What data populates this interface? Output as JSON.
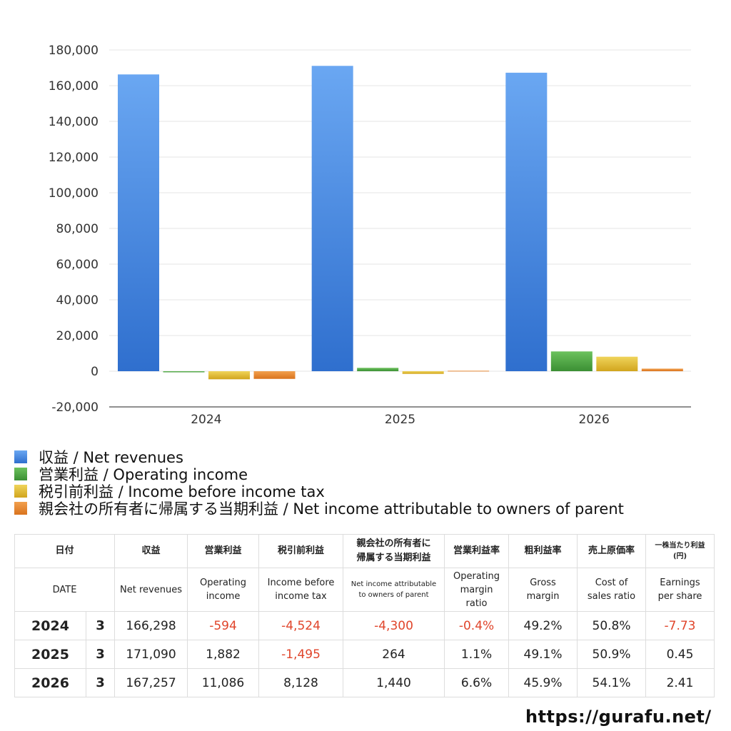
{
  "chart_data": {
    "type": "bar",
    "categories": [
      "2024",
      "2025",
      "2026"
    ],
    "series": [
      {
        "name": "収益 / Net revenues",
        "color": "#4b8fe6",
        "values": [
          166298,
          171090,
          167257
        ]
      },
      {
        "name": "営業利益 / Operating income",
        "color": "#4ea843",
        "values": [
          -594,
          1882,
          11086
        ]
      },
      {
        "name": "税引前利益 / Income before income tax",
        "color": "#e3bd2c",
        "values": [
          -4524,
          -1495,
          8128
        ]
      },
      {
        "name": "親会社の所有者に帰属する当期利益 / Net income attributable to owners of parent",
        "color": "#e58a2e",
        "values": [
          -4300,
          264,
          1440
        ]
      }
    ],
    "ylim": [
      -20000,
      180000
    ],
    "yticks": [
      "-20,000",
      "0",
      "20,000",
      "40,000",
      "60,000",
      "80,000",
      "100,000",
      "120,000",
      "140,000",
      "160,000",
      "180,000"
    ],
    "tick_values": [
      -20000,
      0,
      20000,
      40000,
      60000,
      80000,
      100000,
      120000,
      140000,
      160000,
      180000
    ],
    "grid": true,
    "legend_position": "bottom"
  },
  "table": {
    "headers_jp": [
      "日付",
      "収益",
      "営業利益",
      "税引前利益",
      "親会社の所有者に\n帰属する当期利益",
      "営業利益率",
      "粗利益率",
      "売上原価率",
      "一株当たり利益\n(円)"
    ],
    "headers_en": [
      "DATE",
      "Net revenues",
      "Operating\nincome",
      "Income before\nincome tax",
      "Net income attributable\nto owners of parent",
      "Operating\nmargin\nratio",
      "Gross\nmargin",
      "Cost of\nsales ratio",
      "Earnings\nper share"
    ],
    "rows": [
      {
        "year": "2024",
        "month": "3",
        "revenues": "166,298",
        "operating_income": "-594",
        "pretax_income": "-4,524",
        "net_income": "-4,300",
        "op_margin": "-0.4%",
        "gross_margin": "49.2%",
        "cost_ratio": "50.8%",
        "eps": "-7.73"
      },
      {
        "year": "2025",
        "month": "3",
        "revenues": "171,090",
        "operating_income": "1,882",
        "pretax_income": "-1,495",
        "net_income": "264",
        "op_margin": "1.1%",
        "gross_margin": "49.1%",
        "cost_ratio": "50.9%",
        "eps": "0.45"
      },
      {
        "year": "2026",
        "month": "3",
        "revenues": "167,257",
        "operating_income": "11,086",
        "pretax_income": "8,128",
        "net_income": "1,440",
        "op_margin": "6.6%",
        "gross_margin": "45.9%",
        "cost_ratio": "54.1%",
        "eps": "2.41"
      }
    ]
  },
  "footer": {
    "url": "https://gurafu.net/"
  }
}
